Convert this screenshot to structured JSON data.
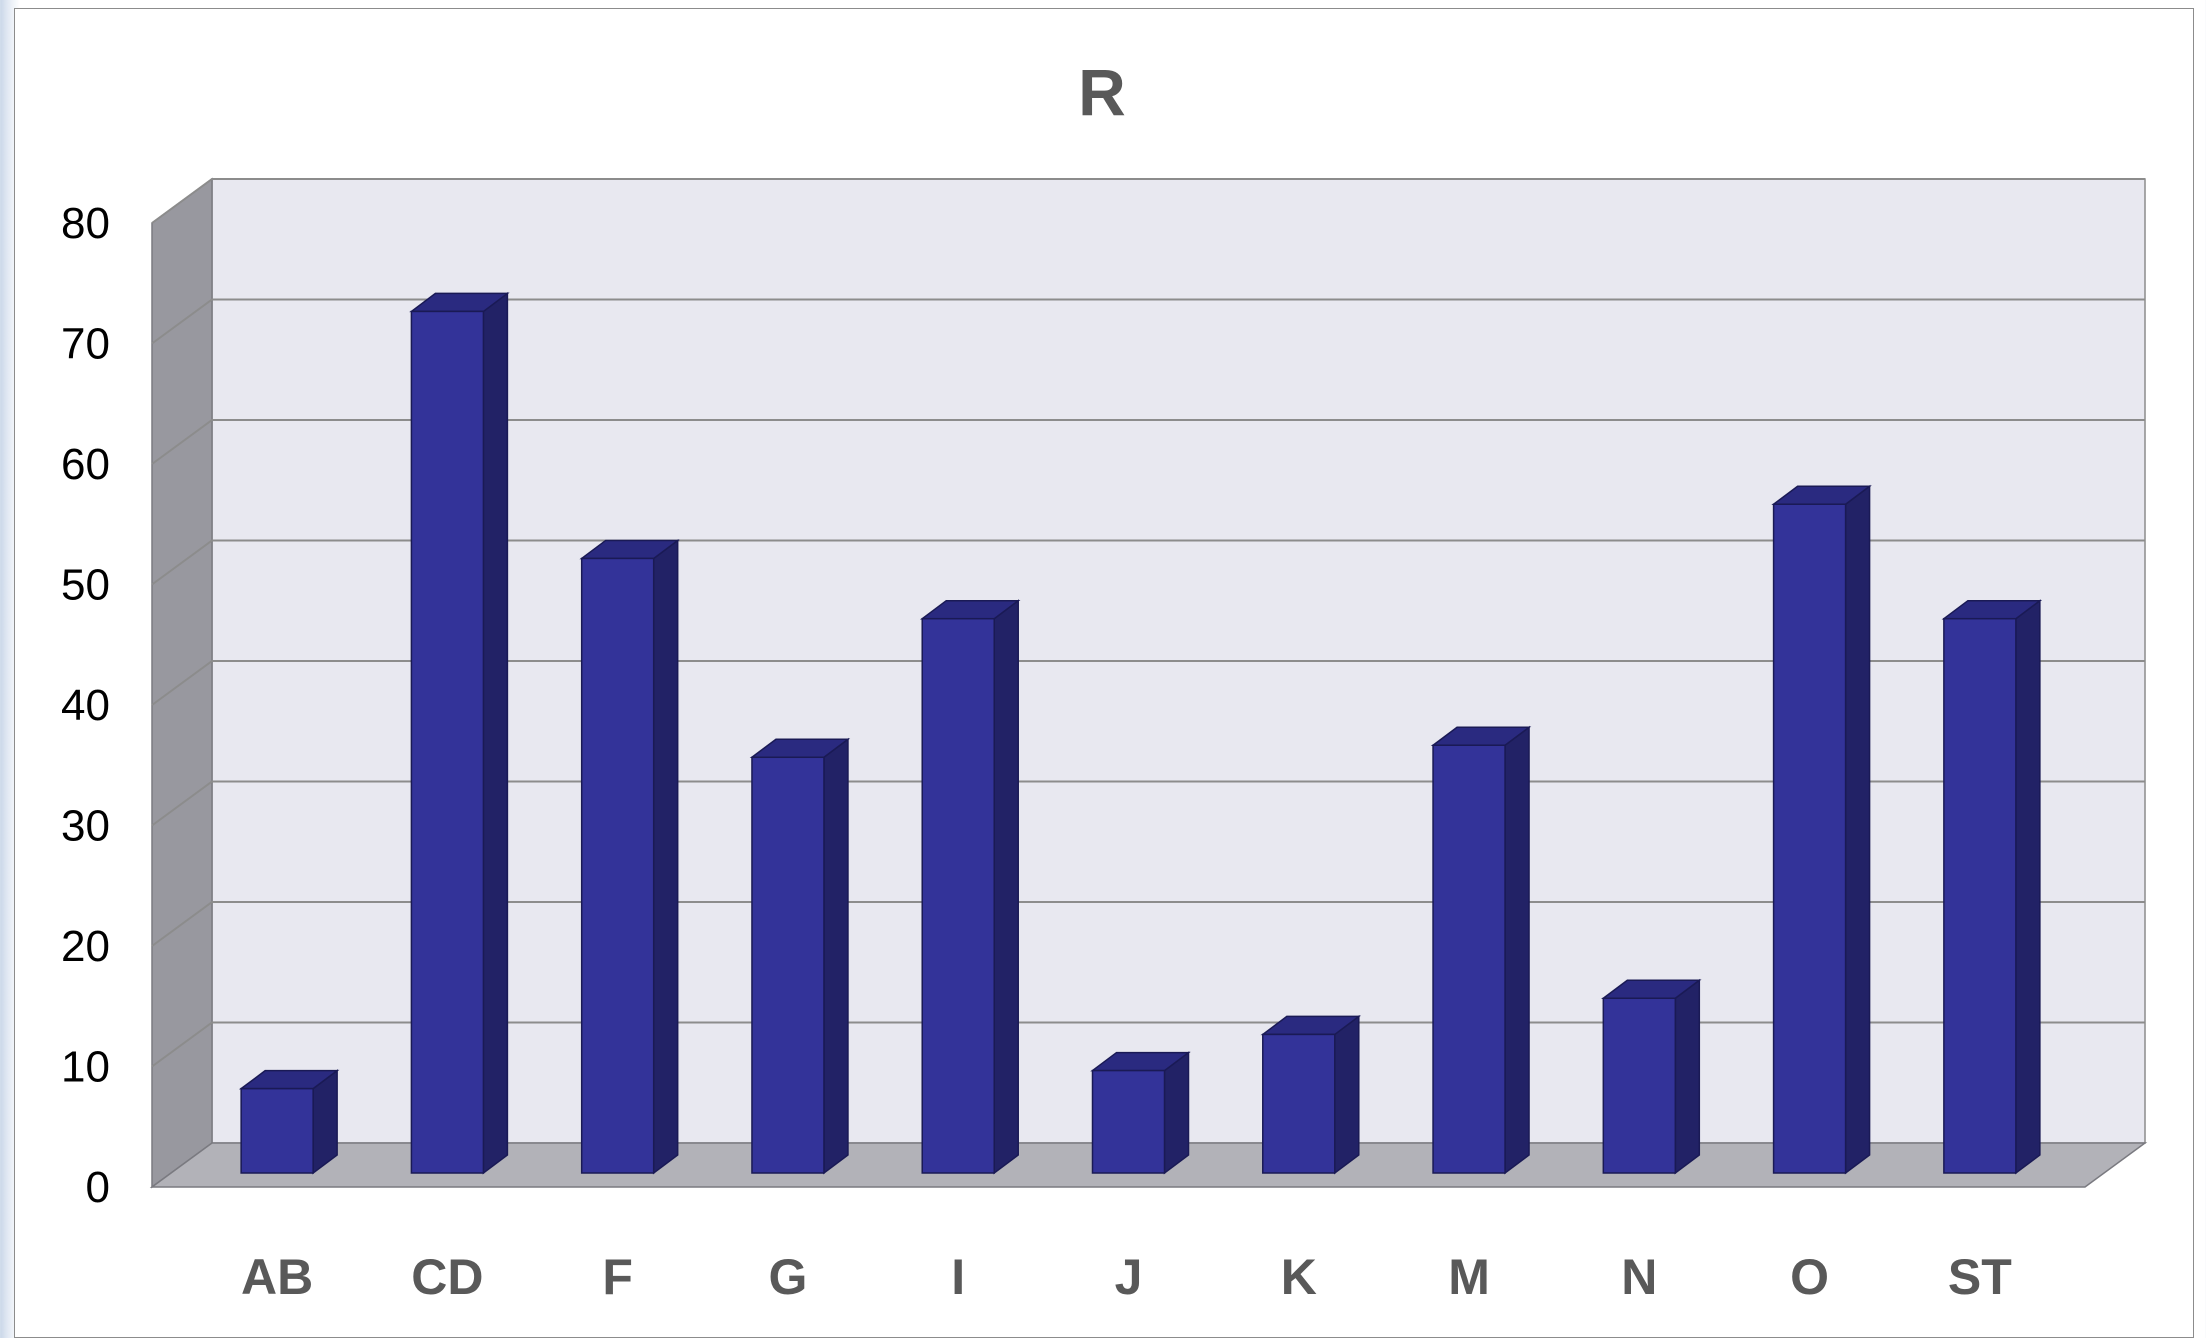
{
  "chart_data": {
    "type": "bar",
    "title": "R",
    "categories": [
      "AB",
      "CD",
      "F",
      "G",
      "I",
      "J",
      "K",
      "M",
      "N",
      "O",
      "ST"
    ],
    "values": [
      7,
      71.5,
      51,
      34.5,
      46,
      8.5,
      11.5,
      35.5,
      14.5,
      55.5,
      46
    ],
    "yticks": [
      "0",
      "10",
      "20",
      "30",
      "40",
      "50",
      "60",
      "70",
      "80"
    ],
    "ylim": [
      0,
      80
    ],
    "grid": true,
    "legend": "none",
    "style": "3d-column",
    "colors": {
      "bar_front": "#333399",
      "bar_side": "#222266",
      "bar_top": "#2a2a80",
      "back_wall": "#e8e8f0",
      "side_wall": "#98989f",
      "floor": "#b2b2b8",
      "gridline": "#8c8c8c"
    }
  }
}
